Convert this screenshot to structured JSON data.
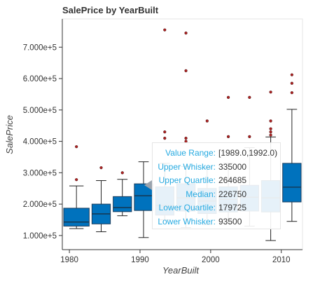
{
  "chart_data": {
    "type": "box",
    "title": "SalePrice by YearBuilt",
    "xlabel": "YearBuilt",
    "ylabel": "SalePrice",
    "xlim": [
      1979,
      2013
    ],
    "ylim": [
      55000,
      790000
    ],
    "xticks": [
      1980,
      1990,
      2000,
      2010
    ],
    "yticks": [
      100000,
      200000,
      300000,
      400000,
      500000,
      600000,
      700000
    ],
    "ytick_labels": [
      "1.000e+5",
      "2.000e+5",
      "3.000e+5",
      "4.000e+5",
      "5.000e+5",
      "6.000e+5",
      "7.000e+5"
    ],
    "box_color": "#0072bd",
    "outlier_color": "#b22222",
    "boxes": [
      {
        "range": [
          1979,
          1983
        ],
        "whisker_low": 122000,
        "q1": 130000,
        "median": 143000,
        "q3": 187000,
        "whisker_high": 258000,
        "outliers": [
          278000,
          383000
        ]
      },
      {
        "range": [
          1983,
          1986
        ],
        "whisker_low": 112000,
        "q1": 137000,
        "median": 169000,
        "q3": 200000,
        "whisker_high": 275000,
        "outliers": [
          316000
        ]
      },
      {
        "range": [
          1986,
          1989
        ],
        "whisker_low": 163000,
        "q1": 176000,
        "median": 189000,
        "q3": 224000,
        "whisker_high": 279000,
        "outliers": [
          300000
        ]
      },
      {
        "range": [
          1989,
          1992
        ],
        "whisker_low": 93500,
        "q1": 179725,
        "median": 226750,
        "q3": 264685,
        "whisker_high": 335000,
        "outliers": []
      },
      {
        "range": [
          1992,
          1995
        ],
        "whisker_low": 150000,
        "q1": 165000,
        "median": 195000,
        "q3": 255000,
        "whisker_high": 330000,
        "outliers": [
          410000,
          430000,
          755000
        ]
      },
      {
        "range": [
          1995,
          1998
        ],
        "whisker_low": 125000,
        "q1": 178000,
        "median": 220000,
        "q3": 265000,
        "whisker_high": 320000,
        "outliers": [
          400000,
          410000,
          625000,
          745000
        ]
      },
      {
        "range": [
          1998,
          2001
        ],
        "whisker_low": 135000,
        "q1": 170000,
        "median": 210000,
        "q3": 250000,
        "whisker_high": 315000,
        "outliers": [
          465000
        ]
      },
      {
        "range": [
          2001,
          2004
        ],
        "whisker_low": 140000,
        "q1": 175000,
        "median": 215000,
        "q3": 255000,
        "whisker_high": 330000,
        "outliers": [
          415000,
          540000
        ]
      },
      {
        "range": [
          2004,
          2007
        ],
        "whisker_low": 130000,
        "q1": 178000,
        "median": 222000,
        "q3": 260000,
        "whisker_high": 380000,
        "outliers": [
          415000,
          540000
        ]
      },
      {
        "range": [
          2007,
          2010
        ],
        "whisker_low": 84000,
        "q1": 175000,
        "median": 220000,
        "q3": 275000,
        "whisker_high": 414000,
        "outliers": [
          420000,
          430000,
          440000,
          465000,
          557000
        ]
      },
      {
        "range": [
          2010,
          2013
        ],
        "whisker_low": 145000,
        "q1": 207000,
        "median": 254000,
        "q3": 330000,
        "whisker_high": 502000,
        "outliers": [
          555000,
          585000,
          612000
        ]
      }
    ]
  },
  "tooltip": {
    "rows": [
      {
        "label": "Value Range:",
        "value": "[1989.0,1992.0)"
      },
      {
        "label": "Upper Whisker:",
        "value": "335000"
      },
      {
        "label": "Upper Quartile:",
        "value": "264685"
      },
      {
        "label": "Median:",
        "value": "226750"
      },
      {
        "label": "Lower Quartile:",
        "value": "179725"
      },
      {
        "label": "Lower Whisker:",
        "value": "93500"
      }
    ]
  }
}
